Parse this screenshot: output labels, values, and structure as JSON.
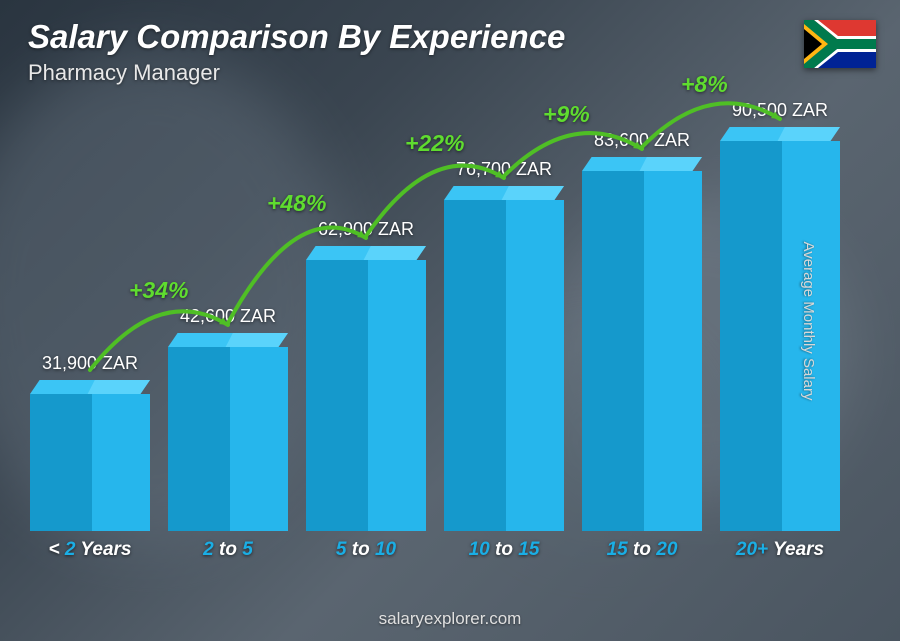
{
  "header": {
    "title": "Salary Comparison By Experience",
    "subtitle": "Pharmacy Manager"
  },
  "flag": {
    "country": "South Africa"
  },
  "y_axis_label": "Average Monthly Salary",
  "footer": "salaryexplorer.com",
  "chart": {
    "type": "bar",
    "currency": "ZAR",
    "max_value": 100000,
    "bar_colors": {
      "left_face": "#1599cc",
      "right_face": "#26b6ec",
      "top_left": "#3bc5f5",
      "top_right": "#5ad3fb"
    },
    "x_label_num_color": "#1aaee5",
    "x_label_word_color": "#ffffff",
    "value_label_color": "#ffffff",
    "pct_color": "#5fdc2f",
    "arc_color": "#4fbf25",
    "value_fontsize": 18,
    "xlabel_fontsize": 19,
    "pct_fontsize": 23,
    "bars": [
      {
        "label_pre": "< ",
        "label_num": "2",
        "label_post": " Years",
        "value": 31900,
        "value_label": "31,900 ZAR",
        "pct": null
      },
      {
        "label_pre": "",
        "label_num": "2",
        "label_mid": " to ",
        "label_num2": "5",
        "label_post": "",
        "value": 42600,
        "value_label": "42,600 ZAR",
        "pct": "+34%"
      },
      {
        "label_pre": "",
        "label_num": "5",
        "label_mid": " to ",
        "label_num2": "10",
        "label_post": "",
        "value": 62900,
        "value_label": "62,900 ZAR",
        "pct": "+48%"
      },
      {
        "label_pre": "",
        "label_num": "10",
        "label_mid": " to ",
        "label_num2": "15",
        "label_post": "",
        "value": 76700,
        "value_label": "76,700 ZAR",
        "pct": "+22%"
      },
      {
        "label_pre": "",
        "label_num": "15",
        "label_mid": " to ",
        "label_num2": "20",
        "label_post": "",
        "value": 83600,
        "value_label": "83,600 ZAR",
        "pct": "+9%"
      },
      {
        "label_pre": "",
        "label_num": "20+",
        "label_post": " Years",
        "value": 90500,
        "value_label": "90,500 ZAR",
        "pct": "+8%"
      }
    ]
  }
}
